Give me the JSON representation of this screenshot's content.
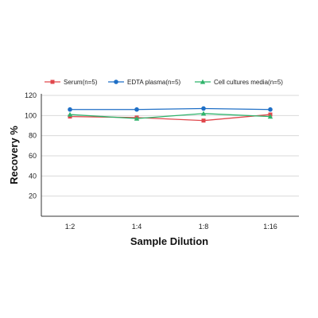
{
  "chart_data": {
    "type": "line",
    "title": "",
    "xlabel": "Sample Dilution",
    "ylabel": "Recovery %",
    "categories": [
      "1:2",
      "1:4",
      "1:8",
      "1:16"
    ],
    "yticks": [
      20,
      40,
      60,
      80,
      100,
      120
    ],
    "ylim": [
      0,
      120
    ],
    "grid": true,
    "legend_position": "top",
    "series": [
      {
        "name": "Serum(n=5)",
        "values": [
          99,
          98,
          95,
          101
        ],
        "color": "#e0474c",
        "marker": "square"
      },
      {
        "name": "EDTA plasma(n=5)",
        "values": [
          106,
          106,
          107,
          106
        ],
        "color": "#1f6fc6",
        "marker": "circle"
      },
      {
        "name": "Cell cultures media(n=5)",
        "values": [
          101,
          97,
          102,
          99
        ],
        "color": "#2fb36b",
        "marker": "triangle"
      }
    ]
  }
}
